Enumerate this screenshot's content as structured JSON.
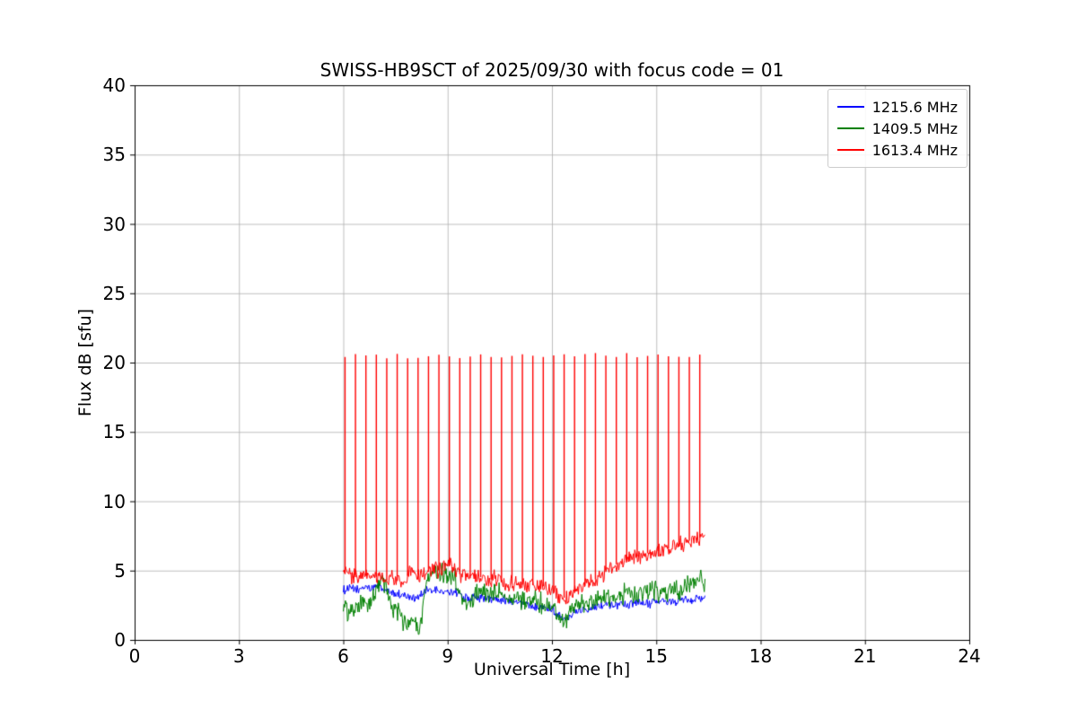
{
  "figure": {
    "background": "#ffffff"
  },
  "chart_data": {
    "type": "line",
    "title": "SWISS-HB9SCT of 2025/09/30 with focus code = 01",
    "xlabel": "Universal Time [h]",
    "ylabel": "Flux dB [sfu]",
    "xlim": [
      0,
      24
    ],
    "ylim": [
      0,
      40
    ],
    "xticks": [
      0,
      3,
      6,
      9,
      12,
      15,
      18,
      21,
      24
    ],
    "yticks": [
      0,
      5,
      10,
      15,
      20,
      25,
      30,
      35,
      40
    ],
    "grid": true,
    "grid_color": "#b0b0b0",
    "axis_color": "#000000",
    "legend_position": "upper right",
    "x": [
      6.0,
      6.2,
      6.4,
      6.6,
      6.8,
      7.0,
      7.2,
      7.4,
      7.6,
      7.8,
      8.0,
      8.2,
      8.4,
      8.6,
      8.8,
      9.0,
      9.2,
      9.4,
      9.6,
      9.8,
      10.0,
      10.2,
      10.4,
      10.6,
      10.8,
      11.0,
      11.2,
      11.4,
      11.6,
      11.8,
      12.0,
      12.2,
      12.4,
      12.6,
      12.8,
      13.0,
      13.2,
      13.4,
      13.6,
      13.8,
      14.0,
      14.2,
      14.4,
      14.6,
      14.8,
      15.0,
      15.2,
      15.4,
      15.6,
      15.8,
      16.0,
      16.2,
      16.4
    ],
    "series": [
      {
        "name": "1215.6 MHz",
        "color": "#0000ff",
        "noise": 0.25,
        "y": [
          3.6,
          3.7,
          3.6,
          3.8,
          3.7,
          3.9,
          3.6,
          3.4,
          3.3,
          3.2,
          3.0,
          3.2,
          3.5,
          3.6,
          3.5,
          3.4,
          3.5,
          3.2,
          3.0,
          3.1,
          3.0,
          2.9,
          3.0,
          2.9,
          2.8,
          2.7,
          2.6,
          2.4,
          2.5,
          2.4,
          2.2,
          1.8,
          1.6,
          1.9,
          2.1,
          2.3,
          2.4,
          2.5,
          2.6,
          2.5,
          2.6,
          2.5,
          2.6,
          2.7,
          2.6,
          2.7,
          2.8,
          2.7,
          2.8,
          2.9,
          2.9,
          3.0,
          3.0
        ]
      },
      {
        "name": "1409.5 MHz",
        "color": "#008000",
        "noise": 0.6,
        "y": [
          2.5,
          2.0,
          2.2,
          2.8,
          2.4,
          4.2,
          4.0,
          2.2,
          2.0,
          0.8,
          1.2,
          0.6,
          4.6,
          4.8,
          4.9,
          4.7,
          4.5,
          3.2,
          2.2,
          3.6,
          3.4,
          3.2,
          3.6,
          3.0,
          2.8,
          3.2,
          2.6,
          3.0,
          2.8,
          2.6,
          2.4,
          1.6,
          1.4,
          2.2,
          2.6,
          2.4,
          2.8,
          3.0,
          3.2,
          3.3,
          3.2,
          3.3,
          3.4,
          3.3,
          3.4,
          3.5,
          3.4,
          3.5,
          3.6,
          3.8,
          4.0,
          4.3,
          4.2
        ]
      },
      {
        "name": "1613.4 MHz",
        "color": "#ff0000",
        "noise": 0.45,
        "y": [
          4.8,
          4.6,
          4.5,
          4.7,
          4.4,
          4.6,
          4.3,
          4.4,
          4.2,
          4.5,
          5.0,
          4.6,
          4.8,
          5.2,
          5.0,
          5.4,
          5.2,
          4.6,
          4.4,
          4.6,
          4.5,
          4.3,
          4.5,
          4.2,
          4.0,
          4.2,
          3.9,
          4.0,
          3.8,
          3.9,
          3.6,
          3.2,
          3.0,
          3.3,
          3.6,
          4.0,
          4.3,
          4.6,
          5.0,
          5.4,
          5.6,
          5.8,
          6.0,
          6.1,
          6.3,
          6.4,
          6.5,
          6.6,
          6.8,
          7.0,
          7.2,
          7.4,
          7.2
        ]
      }
    ],
    "calibration_spikes": {
      "series": "1613.4 MHz",
      "color": "#ff0000",
      "peak": 20.5,
      "times": [
        6.05,
        6.35,
        6.65,
        6.95,
        7.25,
        7.55,
        7.85,
        8.15,
        8.45,
        8.75,
        9.05,
        9.35,
        9.65,
        9.95,
        10.25,
        10.55,
        10.85,
        11.15,
        11.45,
        11.75,
        12.05,
        12.35,
        12.65,
        12.95,
        13.25,
        13.55,
        13.85,
        14.15,
        14.45,
        14.75,
        15.05,
        15.35,
        15.65,
        15.95,
        16.25
      ]
    }
  }
}
